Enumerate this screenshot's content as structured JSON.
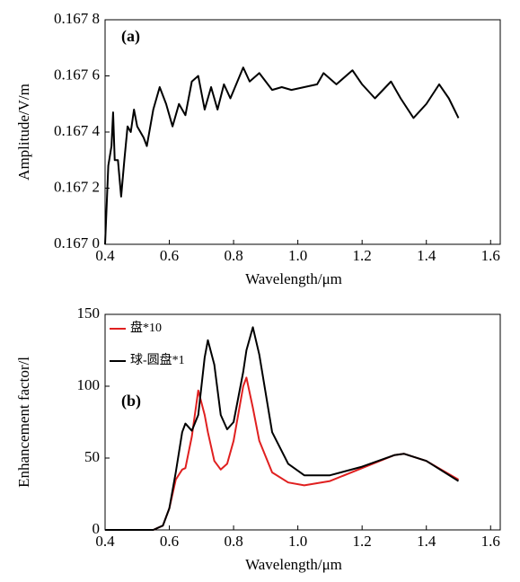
{
  "chart_data": [
    {
      "type": "line",
      "annotation": "(a)",
      "x_label": "Wavelength/μm",
      "y_label": "Amplitude/V/m",
      "x": [
        0.4,
        0.41,
        0.42,
        0.425,
        0.43,
        0.44,
        0.45,
        0.46,
        0.47,
        0.48,
        0.49,
        0.5,
        0.52,
        0.53,
        0.55,
        0.57,
        0.59,
        0.61,
        0.63,
        0.65,
        0.67,
        0.69,
        0.71,
        0.73,
        0.75,
        0.77,
        0.79,
        0.83,
        0.85,
        0.88,
        0.92,
        0.95,
        0.98,
        1.02,
        1.06,
        1.08,
        1.12,
        1.17,
        1.2,
        1.24,
        1.29,
        1.32,
        1.36,
        1.4,
        1.44,
        1.47,
        1.5
      ],
      "series": [
        {
          "color": "#000000",
          "values": [
            0.167,
            0.16728,
            0.16735,
            0.16747,
            0.1673,
            0.1673,
            0.16717,
            0.1673,
            0.16742,
            0.1674,
            0.16748,
            0.16742,
            0.16738,
            0.16735,
            0.16748,
            0.16756,
            0.1675,
            0.16742,
            0.1675,
            0.16746,
            0.16758,
            0.1676,
            0.16748,
            0.16756,
            0.16748,
            0.16757,
            0.16752,
            0.16763,
            0.16758,
            0.16761,
            0.16755,
            0.16756,
            0.16755,
            0.16756,
            0.16757,
            0.16761,
            0.16757,
            0.16762,
            0.16757,
            0.16752,
            0.16758,
            0.16752,
            0.16745,
            0.1675,
            0.16757,
            0.16752,
            0.16745
          ]
        }
      ],
      "xlim": [
        0.4,
        1.63
      ],
      "ylim": [
        0.167,
        0.1678
      ],
      "xticks": [
        0.4,
        0.6,
        0.8,
        {
          "value": 1.0,
          "label": "1.0"
        },
        1.2,
        1.4,
        1.6
      ],
      "yticks": [
        {
          "value": 0.167,
          "label": "0.167 0"
        },
        {
          "value": 0.1672,
          "label": "0.167 2"
        },
        {
          "value": 0.1674,
          "label": "0.167 4"
        },
        {
          "value": 0.1676,
          "label": "0.167 6"
        },
        {
          "value": 0.1678,
          "label": "0.167 8"
        }
      ]
    },
    {
      "type": "line",
      "annotation": "(b)",
      "x_label": "Wavelength/μm",
      "y_label": "Enhancement factor/l",
      "x": [
        0.4,
        0.55,
        0.58,
        0.6,
        0.62,
        0.64,
        0.65,
        0.67,
        0.69,
        0.71,
        0.72,
        0.74,
        0.76,
        0.78,
        0.8,
        0.83,
        0.84,
        0.86,
        0.88,
        0.92,
        0.97,
        1.02,
        1.1,
        1.2,
        1.3,
        1.33,
        1.4,
        1.5
      ],
      "series": [
        {
          "name": "盘*10",
          "color": "#e02020",
          "values": [
            0,
            0,
            3,
            15,
            35,
            42,
            43,
            65,
            97,
            80,
            68,
            48,
            42,
            46,
            62,
            100,
            106,
            85,
            62,
            40,
            33,
            31,
            34,
            43,
            52,
            53,
            48,
            35
          ]
        },
        {
          "name": "球-圆盘*1",
          "color": "#000000",
          "values": [
            0,
            0,
            3,
            15,
            40,
            68,
            74,
            69,
            80,
            120,
            132,
            115,
            80,
            70,
            75,
            110,
            125,
            141,
            122,
            68,
            46,
            38,
            38,
            44,
            52,
            53,
            48,
            34
          ]
        }
      ],
      "xlim": [
        0.4,
        1.63
      ],
      "ylim": [
        0,
        150
      ],
      "xticks": [
        0.4,
        0.6,
        0.8,
        {
          "value": 1.0,
          "label": "1.0"
        },
        1.2,
        1.4,
        1.6
      ],
      "yticks": [
        0,
        50,
        100,
        150
      ]
    }
  ]
}
